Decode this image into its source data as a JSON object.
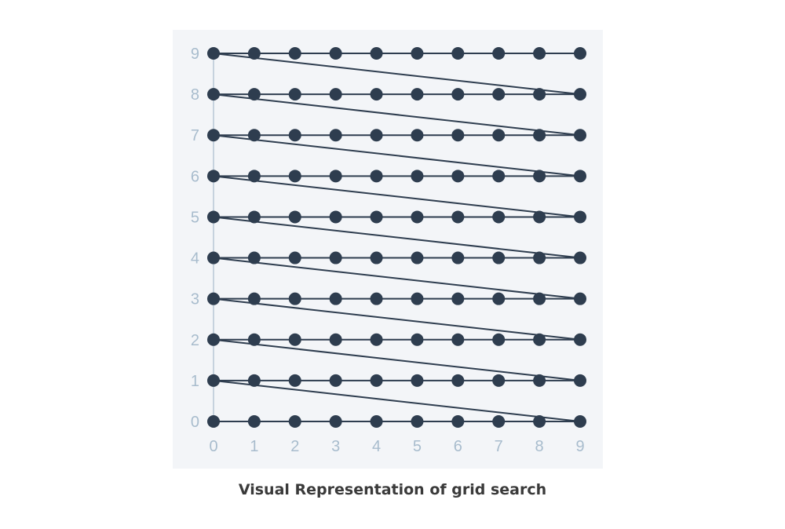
{
  "caption": "Visual Representation of grid search",
  "chart_data": {
    "type": "scatter",
    "title": "",
    "xlabel": "",
    "ylabel": "",
    "xlim": [
      0,
      9
    ],
    "ylim": [
      0,
      9
    ],
    "x_ticks": [
      "0",
      "1",
      "2",
      "3",
      "4",
      "5",
      "6",
      "7",
      "8",
      "9"
    ],
    "y_ticks": [
      "0",
      "1",
      "2",
      "3",
      "4",
      "5",
      "6",
      "7",
      "8",
      "9"
    ],
    "grid": false,
    "legend": "none",
    "points": "all integer pairs (x, y) with x in 0..9 and y in 0..9",
    "path": "row by row: (0,y) to (9,y), then a diagonal from (9,y) to (0,y+1)",
    "colors": {
      "marker": "#2e3d4f",
      "line": "#2e3d4f",
      "plot_background": "#f3f5f8",
      "axis": "#a8bccd",
      "tick_label": "#a8bccd"
    }
  }
}
